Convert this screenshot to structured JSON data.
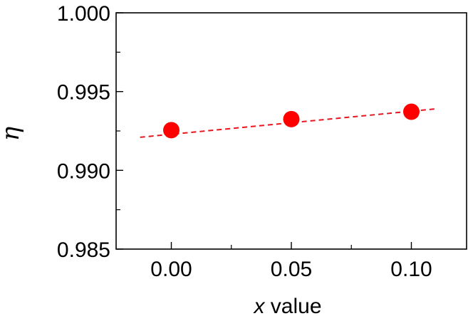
{
  "chart_data": {
    "type": "scatter",
    "title": "",
    "xlabel_var": "x",
    "xlabel_rest": " value",
    "ylabel": "η",
    "xlim": [
      -0.023,
      0.123
    ],
    "ylim": [
      0.985,
      1.0
    ],
    "x_ticks": [
      0.0,
      0.05,
      0.1
    ],
    "x_tick_labels": [
      "0.00",
      "0.05",
      "0.10"
    ],
    "x_minor_ticks": [
      0.025,
      0.075
    ],
    "y_ticks": [
      0.985,
      0.99,
      0.995,
      1.0
    ],
    "y_tick_labels": [
      "0.985",
      "0.990",
      "0.995",
      "1.000"
    ],
    "y_minor_ticks": [
      0.9875,
      0.9925,
      0.9975
    ],
    "grid": false,
    "series": [
      {
        "x": [
          0.0,
          0.05,
          0.1
        ],
        "y": [
          0.99255,
          0.99325,
          0.99372
        ]
      }
    ],
    "fit_line": {
      "x": [
        -0.013,
        0.11
      ],
      "y": [
        0.9921,
        0.9939
      ],
      "style": "dashed"
    },
    "colors": {
      "points": "#ff0000",
      "fit": "#e8141e",
      "axis": "#000000"
    }
  }
}
